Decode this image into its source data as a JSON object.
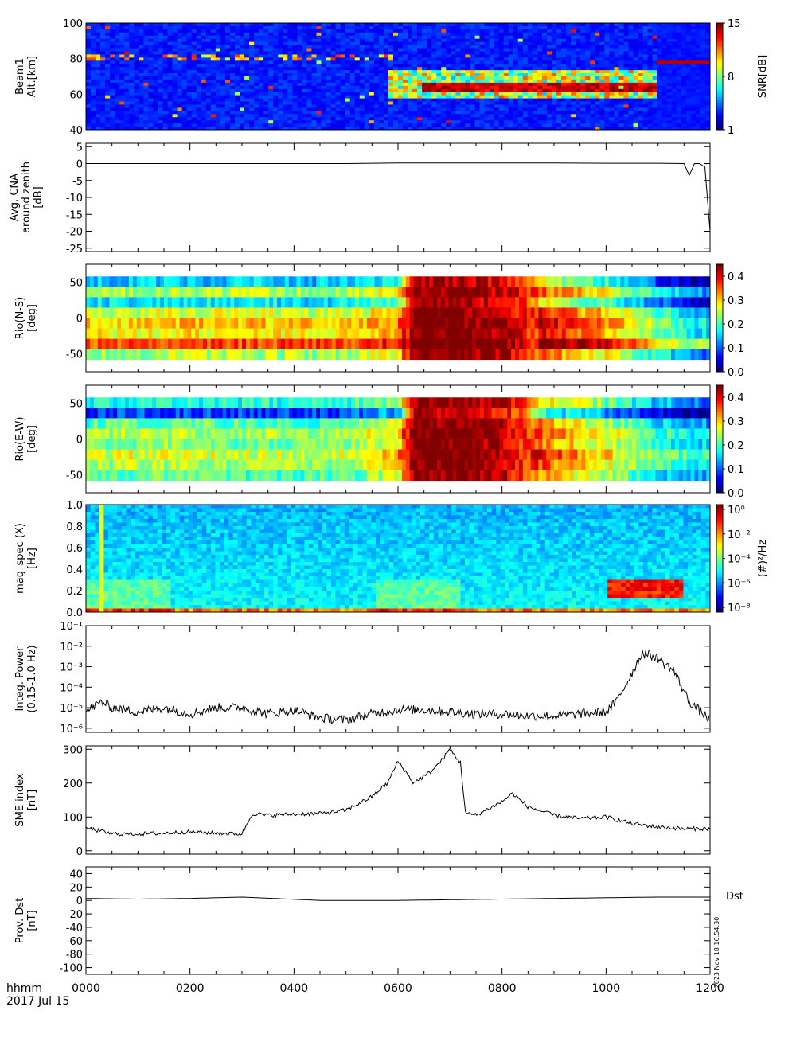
{
  "footer": {
    "time_label": "hhmm",
    "date_label": "2017 Jul 15",
    "x_ticks": [
      "0000",
      "0200",
      "0400",
      "0600",
      "0800",
      "1000",
      "1200"
    ],
    "stamp": "2023 Nov 18 16:54:30"
  },
  "chart_data": [
    {
      "type": "heatmap",
      "ylabel": [
        "Beam1",
        "Alt.[km]"
      ],
      "yticks": [
        "100",
        "80",
        "60",
        "40"
      ],
      "yrange": [
        40,
        100
      ],
      "xrange": [
        0,
        12
      ],
      "x_unit": "hours UT",
      "colorbar": {
        "label": "SNR[dB]",
        "ticks": [
          "15",
          "8",
          "1"
        ],
        "range": [
          1,
          15
        ]
      },
      "features": [
        {
          "desc": "sporadic layer",
          "alt_km": 80,
          "x_hours": [
            0.0,
            6.0
          ]
        },
        {
          "desc": "strong absorption layer",
          "alt_km": 64,
          "x_hours": [
            6.5,
            11.0
          ],
          "snr_db": 15
        }
      ]
    },
    {
      "type": "line",
      "ylabel": [
        "Avg. CNA",
        "around zenith",
        "[dB]"
      ],
      "yticks": [
        "5",
        "0",
        "-5",
        "-10",
        "-15",
        "-20",
        "-25"
      ],
      "ylim": [
        -26,
        6
      ],
      "x": [
        0,
        1,
        2,
        3,
        4,
        5,
        6,
        7,
        8,
        9,
        10,
        11,
        11.5,
        11.6,
        11.7,
        11.8,
        11.9,
        12
      ],
      "values": [
        0,
        0,
        0,
        0,
        0,
        0,
        0.2,
        0.2,
        0.2,
        0.2,
        0.1,
        0.1,
        0,
        -3.5,
        0,
        0,
        -1,
        -20
      ]
    },
    {
      "type": "heatmap",
      "ylabel": [
        "Rio(N-S)",
        "[deg]"
      ],
      "yticks": [
        "50",
        "0",
        "-50"
      ],
      "yrange": [
        -75,
        75
      ],
      "data_yrange": [
        -58,
        58
      ],
      "colorbar": {
        "label": "",
        "ticks": [
          "0.4",
          "0.3",
          "0.2",
          "0.1",
          "0.0"
        ],
        "range": [
          0,
          0.45
        ]
      },
      "x_hours": [
        0,
        1,
        2,
        3,
        4,
        5,
        6,
        6.3,
        7,
        8,
        9,
        10,
        11,
        12
      ],
      "level": [
        0.22,
        0.22,
        0.23,
        0.23,
        0.22,
        0.22,
        0.26,
        0.45,
        0.45,
        0.42,
        0.32,
        0.26,
        0.16,
        0.08
      ]
    },
    {
      "type": "heatmap",
      "ylabel": [
        "Rio(E-W)",
        "[deg]"
      ],
      "yticks": [
        "50",
        "0",
        "-50"
      ],
      "yrange": [
        -75,
        75
      ],
      "data_yrange": [
        -58,
        58
      ],
      "colorbar": {
        "label": "",
        "ticks": [
          "0.4",
          "0.3",
          "0.2",
          "0.1",
          "0.0"
        ],
        "range": [
          0,
          0.45
        ]
      },
      "x_hours": [
        0,
        1,
        2,
        3,
        4,
        5,
        6,
        6.3,
        7,
        8,
        9,
        10,
        11,
        12
      ],
      "level": [
        0.2,
        0.21,
        0.21,
        0.2,
        0.2,
        0.2,
        0.26,
        0.45,
        0.45,
        0.42,
        0.3,
        0.24,
        0.16,
        0.12
      ]
    },
    {
      "type": "heatmap",
      "ylabel": [
        "mag_spec (X)",
        "[Hz]"
      ],
      "yticks": [
        "1.0",
        "0.8",
        "0.6",
        "0.4",
        "0.2",
        "0.0"
      ],
      "yrange": [
        0,
        1.0
      ],
      "colorbar": {
        "label": "(#)²/Hz",
        "ticks": [
          "10⁰",
          "10⁻²",
          "10⁻⁴",
          "10⁻⁶",
          "10⁻⁸"
        ],
        "log_range": [
          -9,
          0
        ]
      },
      "features": [
        {
          "desc": "pulsation band",
          "freq_hz": [
            0.15,
            0.3
          ],
          "x_hours": [
            10.0,
            11.5
          ],
          "log_power": -3
        }
      ]
    },
    {
      "type": "line",
      "ylabel": [
        "Integ. Power",
        "(0.15-1.0 Hz)"
      ],
      "yscale": "log",
      "yticks": [
        "10⁻¹",
        "10⁻²",
        "10⁻³",
        "10⁻⁴",
        "10⁻⁵",
        "10⁻⁶"
      ],
      "ylim_log10": [
        -6.2,
        -1
      ],
      "x": [
        0,
        0.3,
        0.5,
        1,
        1.5,
        2,
        2.5,
        3,
        3.5,
        4,
        4.5,
        5,
        5.5,
        6,
        6.5,
        7,
        7.5,
        8,
        8.5,
        9,
        9.5,
        10,
        10.2,
        10.5,
        10.7,
        11,
        11.3,
        11.6,
        12
      ],
      "values_log10": [
        -5.2,
        -4.7,
        -5.0,
        -5.2,
        -5.0,
        -5.3,
        -5.0,
        -5.0,
        -5.3,
        -5.1,
        -5.5,
        -5.6,
        -5.3,
        -5.1,
        -5.1,
        -5.2,
        -5.3,
        -5.3,
        -5.4,
        -5.4,
        -5.3,
        -5.2,
        -4.7,
        -3.3,
        -2.3,
        -2.6,
        -3.2,
        -4.7,
        -5.6
      ]
    },
    {
      "type": "line",
      "ylabel": [
        "SME index",
        "[nT]"
      ],
      "yticks": [
        "300",
        "200",
        "100",
        "0"
      ],
      "ylim": [
        -10,
        310
      ],
      "x": [
        0,
        0.5,
        1,
        1.5,
        2,
        2.5,
        3,
        3.2,
        3.5,
        4,
        4.5,
        5,
        5.5,
        5.8,
        6,
        6.3,
        6.6,
        6.8,
        7.0,
        7.2,
        7.3,
        7.5,
        8,
        8.2,
        8.5,
        9,
        9.5,
        10,
        10.5,
        11,
        11.5,
        12
      ],
      "values": [
        68,
        50,
        50,
        52,
        56,
        52,
        50,
        110,
        105,
        108,
        110,
        120,
        160,
        200,
        265,
        200,
        230,
        260,
        300,
        260,
        110,
        105,
        145,
        170,
        130,
        105,
        95,
        100,
        80,
        70,
        65,
        65
      ]
    },
    {
      "type": "line",
      "ylabel": [
        "Prov. Dst",
        "[nT]"
      ],
      "yticks": [
        "40",
        "20",
        "0",
        "-20",
        "-40",
        "-60",
        "-80",
        "-100"
      ],
      "ylim": [
        -110,
        50
      ],
      "legend": "Dst",
      "x": [
        0,
        1,
        2,
        3,
        4.5,
        6,
        7,
        8,
        9,
        10,
        11,
        12
      ],
      "values": [
        3,
        2,
        3,
        5,
        0,
        0,
        1,
        2,
        3,
        4,
        5,
        5
      ]
    }
  ]
}
